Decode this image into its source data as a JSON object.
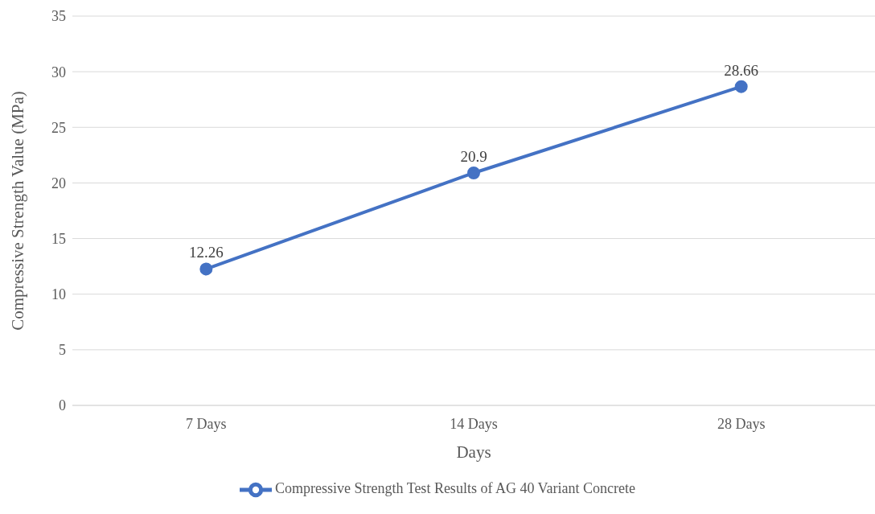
{
  "chart_data": {
    "type": "line",
    "xlabel": "Days",
    "ylabel": "Compressive Strength Value (MPa)",
    "categories": [
      "7 Days",
      "14 Days",
      "28 Days"
    ],
    "series": [
      {
        "name": "Compressive Strength Test Results of AG 40 Variant Concrete",
        "color": "#4472c4",
        "values": [
          12.26,
          20.9,
          28.66
        ]
      }
    ],
    "ylim": [
      0,
      35
    ],
    "yticks": [
      0,
      5,
      10,
      15,
      20,
      25,
      30,
      35
    ],
    "grid": "y",
    "legend": "bottom",
    "marker": "circle",
    "line_style": "solid",
    "data_labels": true
  }
}
